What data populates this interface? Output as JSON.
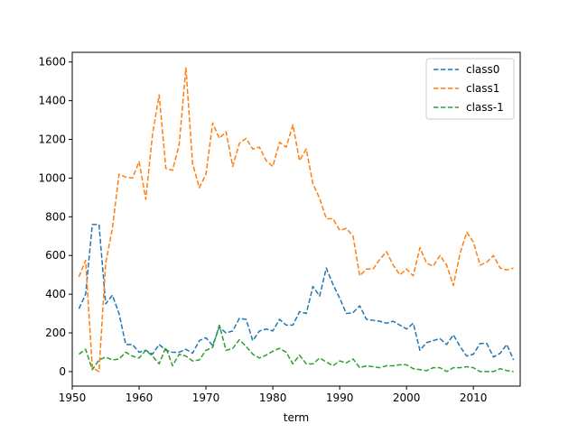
{
  "chart_data": {
    "type": "line",
    "title": "",
    "xlabel": "term",
    "ylabel": "",
    "xlim": [
      1950,
      2017
    ],
    "ylim": [
      -75,
      1650
    ],
    "xticks": [
      1950,
      1960,
      1970,
      1980,
      1990,
      2000,
      2010
    ],
    "yticks": [
      0,
      200,
      400,
      600,
      800,
      1000,
      1200,
      1400,
      1600
    ],
    "legend_position": "top-right",
    "x": [
      1951,
      1952,
      1953,
      1954,
      1955,
      1956,
      1957,
      1958,
      1959,
      1960,
      1961,
      1962,
      1963,
      1964,
      1965,
      1966,
      1967,
      1968,
      1969,
      1970,
      1971,
      1972,
      1973,
      1974,
      1975,
      1976,
      1977,
      1978,
      1979,
      1980,
      1981,
      1982,
      1983,
      1984,
      1985,
      1986,
      1987,
      1988,
      1989,
      1990,
      1991,
      1992,
      1993,
      1994,
      1995,
      1996,
      1997,
      1998,
      1999,
      2000,
      2001,
      2002,
      2003,
      2004,
      2005,
      2006,
      2007,
      2008,
      2009,
      2010,
      2011,
      2012,
      2013,
      2014,
      2015,
      2016
    ],
    "series": [
      {
        "name": "class0",
        "color": "#1f77b4",
        "values": [
          325,
          400,
          760,
          760,
          350,
          395,
          300,
          140,
          140,
          100,
          110,
          90,
          140,
          110,
          100,
          100,
          115,
          95,
          160,
          175,
          135,
          230,
          200,
          210,
          275,
          270,
          160,
          210,
          220,
          210,
          270,
          240,
          240,
          310,
          300,
          440,
          390,
          535,
          450,
          380,
          300,
          305,
          340,
          270,
          265,
          260,
          250,
          260,
          240,
          220,
          250,
          110,
          150,
          160,
          170,
          140,
          190,
          130,
          80,
          90,
          145,
          145,
          75,
          95,
          140,
          60
        ]
      },
      {
        "name": "class1",
        "color": "#ff7f0e",
        "values": [
          490,
          575,
          20,
          0,
          560,
          740,
          1020,
          1005,
          1000,
          1085,
          890,
          1225,
          1430,
          1050,
          1040,
          1175,
          1570,
          1075,
          950,
          1020,
          1285,
          1205,
          1240,
          1060,
          1180,
          1205,
          1150,
          1160,
          1090,
          1060,
          1185,
          1160,
          1275,
          1090,
          1150,
          970,
          895,
          790,
          790,
          730,
          740,
          700,
          495,
          530,
          530,
          580,
          620,
          550,
          500,
          530,
          495,
          640,
          560,
          545,
          600,
          550,
          445,
          610,
          720,
          670,
          550,
          565,
          600,
          535,
          525,
          535
        ]
      },
      {
        "name": "class-1",
        "color": "#2ca02c",
        "values": [
          90,
          115,
          10,
          60,
          75,
          60,
          65,
          100,
          80,
          70,
          110,
          80,
          40,
          125,
          30,
          90,
          80,
          55,
          60,
          110,
          125,
          240,
          110,
          120,
          165,
          130,
          90,
          70,
          85,
          105,
          120,
          100,
          40,
          85,
          40,
          40,
          70,
          50,
          30,
          55,
          45,
          65,
          20,
          30,
          25,
          20,
          30,
          30,
          35,
          35,
          15,
          10,
          5,
          20,
          20,
          0,
          20,
          20,
          25,
          20,
          0,
          0,
          0,
          15,
          5,
          0
        ]
      }
    ]
  }
}
